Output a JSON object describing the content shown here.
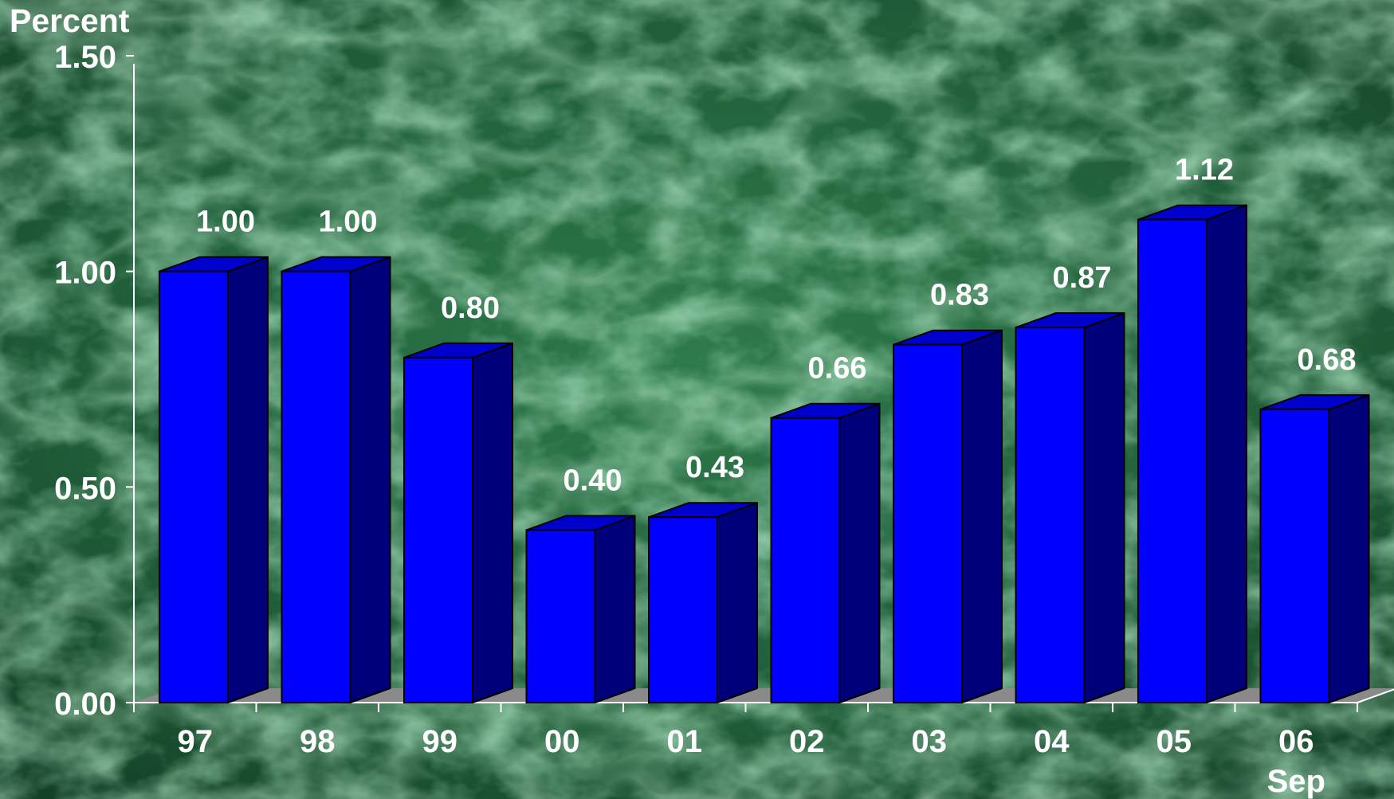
{
  "chart_data": {
    "type": "bar",
    "ylabel": "Percent",
    "categories": [
      "97",
      "98",
      "99",
      "00",
      "01",
      "02",
      "03",
      "04",
      "05",
      "06"
    ],
    "sublabels": [
      "",
      "",
      "",
      "",
      "",
      "",
      "",
      "",
      "",
      "Sep"
    ],
    "values": [
      1.0,
      1.0,
      0.8,
      0.4,
      0.43,
      0.66,
      0.83,
      0.87,
      1.12,
      0.68
    ],
    "value_labels": [
      "1.00",
      "1.00",
      "0.80",
      "0.40",
      "0.43",
      "0.66",
      "0.83",
      "0.87",
      "1.12",
      "0.68"
    ],
    "ylim": [
      0,
      1.5
    ],
    "yticks": [
      0,
      0.5,
      1.0,
      1.5
    ],
    "ytick_labels": [
      "0.00",
      "0.50",
      "1.00",
      "1.50"
    ],
    "style": "3d-bar",
    "grid": false,
    "legend": "none"
  },
  "colors": {
    "bar_front": "#0000ff",
    "bar_top": "#0000cc",
    "bar_side": "#00007a",
    "floor": "#8a8a8a",
    "background": "#1e5a35",
    "text": "#ffffff"
  }
}
